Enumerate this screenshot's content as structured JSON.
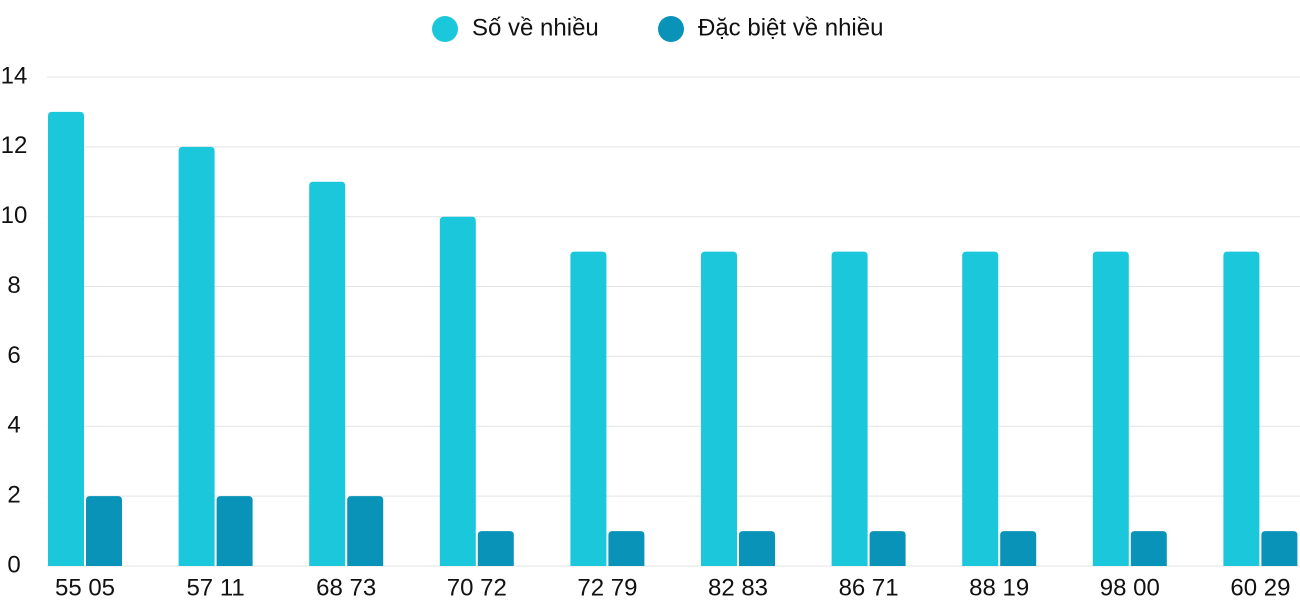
{
  "chart_data": {
    "type": "bar",
    "categories": [
      "55 05",
      "57 11",
      "68 73",
      "70 72",
      "72 79",
      "82 83",
      "86 71",
      "88 19",
      "98 00",
      "60 29"
    ],
    "series": [
      {
        "name": "Số về nhiều",
        "color": "#1bc8db",
        "values": [
          13,
          12,
          11,
          10,
          9,
          9,
          9,
          9,
          9,
          9
        ]
      },
      {
        "name": "Đặc biệt về nhiều",
        "color": "#0993b8",
        "values": [
          2,
          2,
          2,
          1,
          1,
          1,
          1,
          1,
          1,
          1
        ]
      }
    ],
    "ylim": [
      0,
      14
    ],
    "yticks": [
      0,
      2,
      4,
      6,
      8,
      10,
      12,
      14
    ],
    "grid": true,
    "legend": "top"
  }
}
